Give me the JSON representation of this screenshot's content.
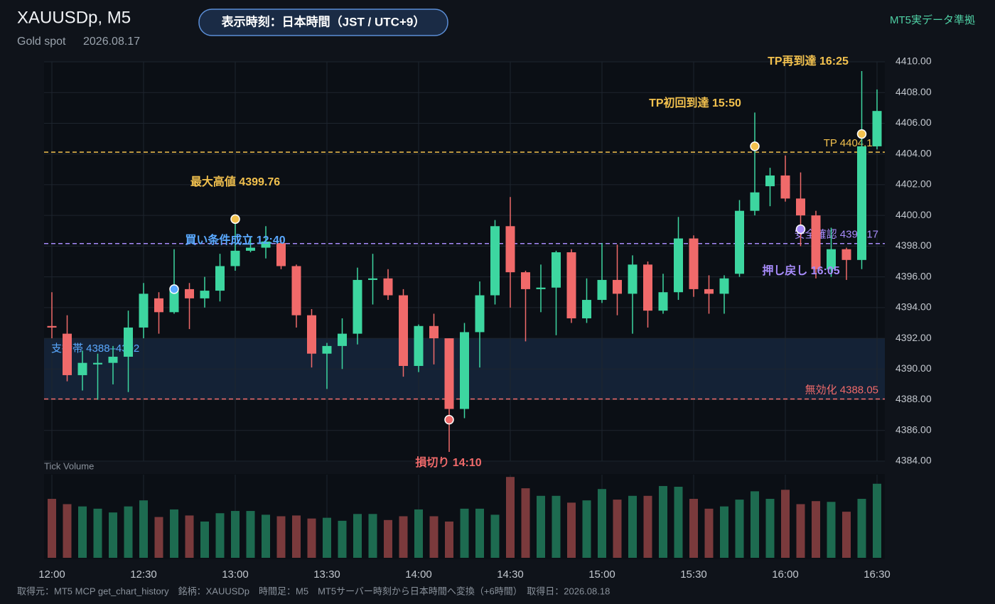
{
  "header": {
    "title": "XAUUSDp, M5",
    "subtitle": "Gold spot",
    "date": "2026.08.17",
    "badge": "表示時刻：日本時間（JST / UTC+9）",
    "source_tag": "MT5実データ準拠"
  },
  "footer": "取得元：MT5 MCP get_chart_history　銘柄：XAUUSDp　時間足：M5　MT5サーバー時刻から日本時間へ変換（+6時間）　取得日：2026.08.18",
  "chart_data": {
    "type": "candlestick",
    "categories": [
      "12:00",
      null,
      null,
      null,
      null,
      null,
      "12:30",
      null,
      null,
      null,
      null,
      null,
      "13:00",
      null,
      null,
      null,
      null,
      null,
      "13:30",
      null,
      null,
      null,
      null,
      null,
      "14:00",
      null,
      null,
      null,
      null,
      null,
      "14:30",
      null,
      null,
      null,
      null,
      null,
      "15:00",
      null,
      null,
      null,
      null,
      null,
      "15:30",
      null,
      null,
      null,
      null,
      null,
      "16:00",
      null,
      null,
      null,
      null,
      null,
      "16:30"
    ],
    "open": [
      4392.8,
      4392.3,
      4389.6,
      4390.3,
      4390.4,
      4390.8,
      4392.7,
      4394.6,
      4393.7,
      4395.2,
      4394.6,
      4395.1,
      4396.7,
      4397.7,
      4397.9,
      4398.2,
      4396.7,
      4393.5,
      4391.0,
      4391.5,
      4392.3,
      4395.8,
      4395.9,
      4394.8,
      4390.2,
      4392.8,
      4392.0,
      4387.4,
      4392.4,
      4394.8,
      4399.3,
      4396.3,
      4395.2,
      4395.3,
      4397.6,
      4393.3,
      4394.5,
      4395.8,
      4394.9,
      4396.8,
      4393.8,
      4395.0,
      4398.5,
      4395.2,
      4394.9,
      4396.2,
      4400.3,
      4401.9,
      4402.6,
      4401.1,
      4400.0,
      4396.5,
      4397.8,
      4397.1,
      4404.5
    ],
    "high": [
      4395.0,
      4393.5,
      4391.2,
      4391.0,
      4391.5,
      4393.8,
      4395.6,
      4395.0,
      4397.8,
      4395.6,
      4396.0,
      4397.5,
      4399.76,
      4398.6,
      4399.3,
      4398.4,
      4396.8,
      4393.9,
      4391.7,
      4393.3,
      4396.6,
      4397.5,
      4396.5,
      4395.2,
      4392.9,
      4393.6,
      4392.0,
      4393.0,
      4395.7,
      4399.7,
      4401.2,
      4396.4,
      4396.8,
      4397.7,
      4397.8,
      4395.9,
      4398.2,
      4398.1,
      4397.4,
      4397.0,
      4396.2,
      4399.9,
      4398.7,
      4396.1,
      4396.1,
      4401.0,
      4406.7,
      4403.1,
      4403.9,
      4402.8,
      4400.3,
      4399.2,
      4397.9,
      4409.4,
      4408.2
    ],
    "low": [
      4392.0,
      4389.2,
      4388.6,
      4388.0,
      4389.0,
      4388.5,
      4392.0,
      4392.3,
      4393.6,
      4392.6,
      4394.0,
      4394.4,
      4396.4,
      4397.6,
      4397.2,
      4396.5,
      4392.7,
      4390.1,
      4388.7,
      4390.0,
      4391.6,
      4394.2,
      4394.5,
      4389.5,
      4389.8,
      4390.3,
      4384.6,
      4386.8,
      4390.1,
      4394.2,
      4394.0,
      4391.8,
      4393.7,
      4392.2,
      4393.0,
      4393.0,
      4394.3,
      4393.5,
      4392.3,
      4392.7,
      4393.6,
      4394.5,
      4394.7,
      4393.6,
      4393.6,
      4396.0,
      4400.0,
      4400.6,
      4400.9,
      4398.0,
      4395.9,
      4396.0,
      4395.8,
      4396.5,
      4404.3
    ],
    "close": [
      4392.7,
      4389.6,
      4390.4,
      4390.4,
      4390.8,
      4392.7,
      4394.9,
      4393.7,
      4395.3,
      4394.6,
      4395.1,
      4396.7,
      4397.7,
      4397.9,
      4398.3,
      4396.7,
      4393.5,
      4391.0,
      4391.5,
      4392.3,
      4395.8,
      4395.9,
      4394.8,
      4390.2,
      4392.8,
      4392.0,
      4387.4,
      4392.4,
      4394.8,
      4399.3,
      4396.3,
      4395.2,
      4395.3,
      4397.6,
      4393.3,
      4394.5,
      4395.8,
      4394.9,
      4396.8,
      4393.8,
      4395.0,
      4398.5,
      4395.2,
      4394.9,
      4395.9,
      4400.3,
      4401.5,
      4402.6,
      4401.1,
      4400.0,
      4396.5,
      4397.8,
      4397.1,
      4404.5,
      4406.8
    ],
    "volume_label": "Tick Volume",
    "volume": [
      78,
      71,
      68,
      65,
      60,
      68,
      76,
      54,
      64,
      56,
      48,
      59,
      62,
      62,
      57,
      55,
      56,
      52,
      53,
      49,
      58,
      58,
      50,
      55,
      64,
      55,
      48,
      65,
      65,
      57,
      107,
      92,
      82,
      82,
      73,
      76,
      91,
      77,
      82,
      82,
      95,
      94,
      78,
      65,
      68,
      77,
      88,
      78,
      90,
      71,
      75,
      74,
      61,
      78,
      98
    ],
    "volume_lim": [
      0,
      110
    ],
    "up_color": "#3dd6a0",
    "down_color": "#f06a6a",
    "volume_up_color": "#1d6b50",
    "volume_down_color": "#7a3a3c",
    "ylim": [
      4384,
      4410
    ],
    "yticks": [
      {
        "value": 4384,
        "label": "4384.00"
      },
      {
        "value": 4386,
        "label": "4386.00"
      },
      {
        "value": 4388,
        "label": "4388.00"
      },
      {
        "value": 4390,
        "label": "4390.00"
      },
      {
        "value": 4392,
        "label": "4392.00"
      },
      {
        "value": 4394,
        "label": "4394.00"
      },
      {
        "value": 4396,
        "label": "4396.00"
      },
      {
        "value": 4398,
        "label": "4398.00"
      },
      {
        "value": 4400,
        "label": "4400.00"
      },
      {
        "value": 4402,
        "label": "4402.00"
      },
      {
        "value": 4404,
        "label": "4404.00"
      },
      {
        "value": 4406,
        "label": "4406.00"
      },
      {
        "value": 4408,
        "label": "4408.00"
      },
      {
        "value": 4410,
        "label": "4410.00"
      }
    ],
    "grid": true,
    "zone": {
      "label": "支持帯 4388–4392",
      "range": [
        4388,
        4392
      ],
      "color": "#5aa9ff"
    },
    "levels": [
      {
        "label": "TP 4404.12",
        "value": 4404.12,
        "color": "#f2c14e"
      },
      {
        "label": "安全確認 4398.17",
        "value": 4398.17,
        "color": "#a78bfa"
      },
      {
        "label": "無効化 4388.05",
        "value": 4388.05,
        "color": "#f06a6a"
      }
    ],
    "events": [
      {
        "label": "買い条件成立 12:40",
        "index": 8,
        "value": 4395.2,
        "color": "#5aa9ff"
      },
      {
        "label": "最大高値 4399.76",
        "index": 12,
        "value": 4399.76,
        "color": "#f2c14e"
      },
      {
        "label": "損切り 14:10",
        "index": 26,
        "value": 4386.7,
        "color": "#f06a6a"
      },
      {
        "label": "TP初回到達 15:50",
        "index": 46,
        "value": 4404.5,
        "color": "#f2c14e"
      },
      {
        "label": "押し戻し 16:05",
        "index": 49,
        "value": 4399.1,
        "color": "#a78bfa"
      },
      {
        "label": "TP再到達 16:25",
        "index": 53,
        "value": 4405.3,
        "color": "#f2c14e"
      }
    ]
  }
}
